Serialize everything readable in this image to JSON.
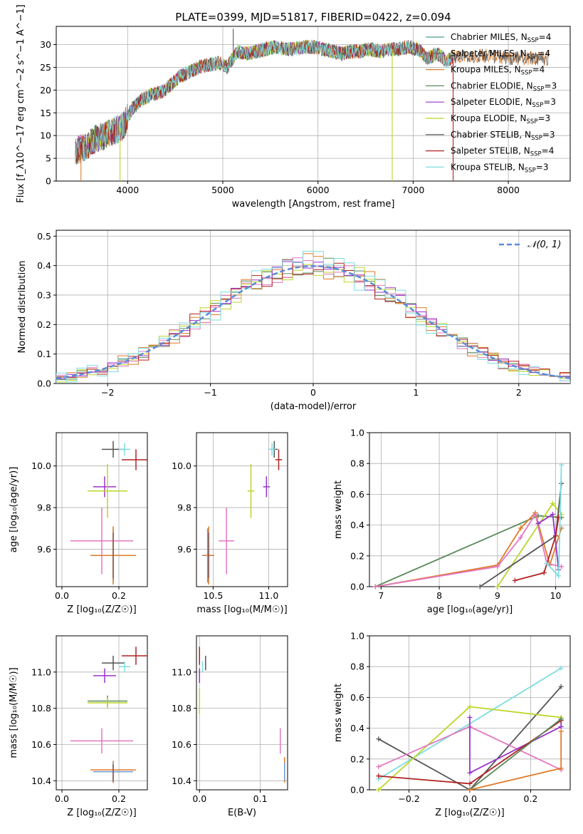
{
  "figure": {
    "title": "PLATE=0399, MJD=51817, FIBERID=0422, z=0.094"
  },
  "colors": {
    "axes": "#000000",
    "grid": "#b0b0b0",
    "chabrier_miles": "#4a9e8a",
    "salpeter_miles": "#8c564b",
    "kroupa_miles": "#e07b28",
    "chabrier_elodie": "#5a8a5a",
    "salpeter_elodie": "#9932cc",
    "kroupa_elodie": "#bcd629",
    "chabrier_stelib": "#555555",
    "salpeter_stelib": "#b22222",
    "kroupa_stelib": "#7ddde0",
    "normal_curve": "#5b8bd6",
    "extra_pink": "#e377c2",
    "extra_blue": "#6a9bd8"
  },
  "chart_data": [
    {
      "id": "spectrum",
      "type": "line",
      "xlabel": "wavelength [Angstrom, rest frame]",
      "ylabel": "Flux [f_λ10^−17 erg cm^−2 s^−1 A^−1]",
      "xlim": [
        3250,
        8650
      ],
      "ylim": [
        0,
        34
      ],
      "xticks": [
        4000,
        5000,
        6000,
        7000,
        8000
      ],
      "yticks": [
        0,
        5,
        10,
        15,
        20,
        25,
        30
      ],
      "legend_position": "top-right",
      "legend": [
        {
          "base": "Chabrier MILES, N",
          "sub": "SSP",
          "tail": "=4",
          "color_key": "chabrier_miles"
        },
        {
          "base": "Salpeter MILES, N",
          "sub": "SSP",
          "tail": "=4",
          "color_key": "salpeter_miles"
        },
        {
          "base": "Kroupa MILES, N",
          "sub": "SSP",
          "tail": "=4",
          "color_key": "kroupa_miles"
        },
        {
          "base": "Chabrier ELODIE, N",
          "sub": "SSP",
          "tail": "=3",
          "color_key": "chabrier_elodie"
        },
        {
          "base": "Salpeter ELODIE, N",
          "sub": "SSP",
          "tail": "=3",
          "color_key": "salpeter_elodie"
        },
        {
          "base": "Kroupa ELODIE, N",
          "sub": "SSP",
          "tail": "=3",
          "color_key": "kroupa_elodie"
        },
        {
          "base": "Chabrier STELIB, N",
          "sub": "SSP",
          "tail": "=3",
          "color_key": "chabrier_stelib"
        },
        {
          "base": "Salpeter STELIB, N",
          "sub": "SSP",
          "tail": "=4",
          "color_key": "salpeter_stelib"
        },
        {
          "base": "Kroupa STELIB, N",
          "sub": "SSP",
          "tail": "=3",
          "color_key": "kroupa_stelib"
        }
      ],
      "envelope": {
        "x": [
          3450,
          3550,
          3650,
          3750,
          3850,
          3950,
          4050,
          4150,
          4250,
          4350,
          4450,
          4550,
          4650,
          4750,
          4850,
          4950,
          5050,
          5150,
          5250,
          5350,
          5450,
          5550,
          5650,
          5750,
          5850,
          5950,
          6050,
          6150,
          6250,
          6350,
          6450,
          6550,
          6650,
          6750,
          6850,
          6950,
          7050,
          7150,
          7250,
          7350,
          7450,
          7600,
          7800,
          8000,
          8200,
          8400
        ],
        "y": [
          6.5,
          7.5,
          9,
          10,
          11,
          12,
          16,
          18,
          19,
          19.5,
          21,
          23,
          24,
          25,
          25.5,
          26,
          25,
          28.5,
          28,
          28.5,
          29,
          29.5,
          29,
          29,
          29.5,
          29.5,
          29,
          28.5,
          28,
          28.5,
          28.5,
          29,
          28.5,
          29,
          29,
          29.5,
          29,
          27,
          28,
          26.5,
          27.5,
          27.5,
          27.5,
          27,
          27,
          27
        ]
      },
      "spikes": [
        {
          "x": 3510,
          "y": 0,
          "color_key": "kroupa_miles"
        },
        {
          "x": 3920,
          "y": 0,
          "color_key": "kroupa_elodie"
        },
        {
          "x": 5110,
          "y": 33.5,
          "color_key": "chabrier_stelib"
        },
        {
          "x": 6780,
          "y": 0,
          "color_key": "kroupa_elodie"
        },
        {
          "x": 7420,
          "y": 0,
          "color_key": "salpeter_stelib"
        }
      ]
    },
    {
      "id": "residual_histogram",
      "type": "bar",
      "xlabel": "(data-model)/error",
      "ylabel": "Normed distribution",
      "xlim": [
        -2.5,
        2.5
      ],
      "ylim": [
        0,
        0.52
      ],
      "xticks": [
        -2,
        -1,
        0,
        1,
        2
      ],
      "yticks": [
        0.0,
        0.1,
        0.2,
        0.3,
        0.4,
        0.5
      ],
      "legend_position": "top-right",
      "legend": [
        {
          "name": "𝒩(0, 1)",
          "color_key": "normal_curve",
          "dash": true
        }
      ],
      "bin_width": 0.1,
      "bin_start": -2.5,
      "series": [
        {
          "color_key": "chabrier_elodie",
          "jitter": 0.9
        },
        {
          "color_key": "kroupa_miles",
          "jitter": 1.3
        },
        {
          "color_key": "extra_pink",
          "jitter": 1.0
        },
        {
          "color_key": "kroupa_elodie",
          "jitter": 1.1
        },
        {
          "color_key": "salpeter_elodie",
          "jitter": 0.8
        },
        {
          "color_key": "salpeter_stelib",
          "jitter": 1.2
        },
        {
          "color_key": "kroupa_stelib",
          "jitter": 1.4
        }
      ]
    },
    {
      "id": "age_vs_Z",
      "type": "scatter",
      "xlabel": "Z [log₁₀(Z/Z☉)]",
      "ylabel": "age  [log₁₀(age/yr)]",
      "xlim": [
        -0.02,
        0.3
      ],
      "ylim": [
        9.42,
        10.16
      ],
      "xticks": [
        0.0,
        0.2
      ],
      "yticks": [
        9.6,
        9.8,
        10.0
      ],
      "points": [
        {
          "x": 0.18,
          "y": 10.08,
          "xerr": 0.04,
          "yerr": 0.04,
          "color_key": "chabrier_stelib"
        },
        {
          "x": 0.22,
          "y": 10.08,
          "xerr": 0.02,
          "yerr": 0.03,
          "color_key": "kroupa_stelib"
        },
        {
          "x": 0.26,
          "y": 10.03,
          "xerr": 0.05,
          "yerr": 0.05,
          "color_key": "salpeter_stelib"
        },
        {
          "x": 0.15,
          "y": 9.9,
          "xerr": 0.04,
          "yerr": 0.05,
          "color_key": "salpeter_elodie"
        },
        {
          "x": 0.16,
          "y": 9.88,
          "xerr": 0.07,
          "yerr": 0.13,
          "color_key": "kroupa_elodie"
        },
        {
          "x": 0.14,
          "y": 9.64,
          "xerr": 0.11,
          "yerr": 0.16,
          "color_key": "extra_pink"
        },
        {
          "x": 0.18,
          "y": 9.57,
          "xerr": 0.07,
          "yerr": 0.13,
          "color_key": "extra_blue"
        },
        {
          "x": 0.18,
          "y": 9.57,
          "xerr": 0.08,
          "yerr": 0.14,
          "color_key": "kroupa_miles"
        },
        {
          "x": 0.18,
          "y": 9.57,
          "xerr": 0.0,
          "yerr": 0.11,
          "color_key": "salpeter_miles"
        }
      ]
    },
    {
      "id": "age_vs_mass",
      "type": "scatter",
      "xlabel": "mass [log₁₀(M/M☉)]",
      "ylabel": "",
      "xlim": [
        10.35,
        11.17
      ],
      "ylim": [
        9.42,
        10.16
      ],
      "xticks": [
        10.5,
        11.0
      ],
      "yticks": [
        9.6,
        9.8,
        10.0
      ],
      "points": [
        {
          "x": 11.05,
          "y": 10.08,
          "xerr": 0.03,
          "yerr": 0.04,
          "color_key": "chabrier_stelib"
        },
        {
          "x": 11.03,
          "y": 10.08,
          "xerr": 0.03,
          "yerr": 0.03,
          "color_key": "kroupa_stelib"
        },
        {
          "x": 11.09,
          "y": 10.03,
          "xerr": 0.03,
          "yerr": 0.05,
          "color_key": "salpeter_stelib"
        },
        {
          "x": 10.98,
          "y": 9.9,
          "xerr": 0.03,
          "yerr": 0.05,
          "color_key": "salpeter_elodie"
        },
        {
          "x": 10.84,
          "y": 9.88,
          "xerr": 0.03,
          "yerr": 0.13,
          "color_key": "kroupa_elodie"
        },
        {
          "x": 10.62,
          "y": 9.64,
          "xerr": 0.07,
          "yerr": 0.16,
          "color_key": "extra_pink"
        },
        {
          "x": 10.45,
          "y": 9.57,
          "xerr": 0.05,
          "yerr": 0.13,
          "color_key": "extra_blue"
        },
        {
          "x": 10.46,
          "y": 9.57,
          "xerr": 0.05,
          "yerr": 0.14,
          "color_key": "kroupa_miles"
        },
        {
          "x": 10.46,
          "y": 9.57,
          "xerr": 0.0,
          "yerr": 0.11,
          "color_key": "salpeter_miles"
        }
      ]
    },
    {
      "id": "mass_weight_vs_age",
      "type": "line",
      "xlabel": "age  [log₁₀(age/yr)]",
      "ylabel": "mass weight",
      "xlim": [
        6.8,
        10.25
      ],
      "ylim": [
        0,
        1.0
      ],
      "xticks": [
        7,
        8,
        9,
        10
      ],
      "yticks": [
        0.0,
        0.2,
        0.4,
        0.6,
        0.8,
        1.0
      ],
      "series": [
        {
          "color_key": "chabrier_elodie",
          "x": [
            6.9,
            9.7,
            10.1
          ],
          "y": [
            0.0,
            0.46,
            0.45
          ]
        },
        {
          "color_key": "kroupa_miles",
          "x": [
            6.9,
            9.0,
            9.4,
            9.65,
            9.9,
            10.1
          ],
          "y": [
            0.0,
            0.14,
            0.38,
            0.48,
            0.14,
            0.38
          ]
        },
        {
          "color_key": "extra_pink",
          "x": [
            6.9,
            9.0,
            9.4,
            9.65,
            9.85,
            10.1
          ],
          "y": [
            0.0,
            0.13,
            0.32,
            0.47,
            0.15,
            0.13
          ]
        },
        {
          "color_key": "kroupa_elodie",
          "x": [
            9.0,
            9.95,
            10.1
          ],
          "y": [
            0.0,
            0.54,
            0.47
          ]
        },
        {
          "color_key": "salpeter_elodie",
          "x": [
            9.7,
            9.95,
            10.05
          ],
          "y": [
            0.41,
            0.47,
            0.11
          ]
        },
        {
          "color_key": "chabrier_stelib",
          "x": [
            8.7,
            10.0,
            10.1
          ],
          "y": [
            0.0,
            0.33,
            0.67
          ]
        },
        {
          "color_key": "salpeter_stelib",
          "x": [
            9.3,
            9.8,
            10.0,
            10.05
          ],
          "y": [
            0.04,
            0.09,
            0.33,
            0.45
          ]
        },
        {
          "color_key": "kroupa_stelib",
          "x": [
            9.85,
            10.05,
            10.1
          ],
          "y": [
            0.15,
            0.07,
            0.79
          ]
        }
      ]
    },
    {
      "id": "mass_vs_Z",
      "type": "scatter",
      "xlabel": "Z [log₁₀(Z/Z☉)]",
      "ylabel": "mass [log₁₀(M/M☉)]",
      "xlim": [
        -0.02,
        0.3
      ],
      "ylim": [
        10.35,
        11.2
      ],
      "xticks": [
        0.0,
        0.2
      ],
      "yticks": [
        10.4,
        10.6,
        10.8,
        11.0
      ],
      "points": [
        {
          "x": 0.26,
          "y": 11.09,
          "xerr": 0.05,
          "yerr": 0.05,
          "color_key": "salpeter_stelib"
        },
        {
          "x": 0.18,
          "y": 11.05,
          "xerr": 0.04,
          "yerr": 0.04,
          "color_key": "chabrier_stelib"
        },
        {
          "x": 0.22,
          "y": 11.03,
          "xerr": 0.02,
          "yerr": 0.03,
          "color_key": "kroupa_stelib"
        },
        {
          "x": 0.15,
          "y": 10.98,
          "xerr": 0.04,
          "yerr": 0.04,
          "color_key": "salpeter_elodie"
        },
        {
          "x": 0.16,
          "y": 10.84,
          "xerr": 0.07,
          "yerr": 0.03,
          "color_key": "chabrier_elodie"
        },
        {
          "x": 0.16,
          "y": 10.83,
          "xerr": 0.07,
          "yerr": 0.03,
          "color_key": "kroupa_elodie"
        },
        {
          "x": 0.14,
          "y": 10.62,
          "xerr": 0.11,
          "yerr": 0.07,
          "color_key": "extra_pink"
        },
        {
          "x": 0.18,
          "y": 10.46,
          "xerr": 0.08,
          "yerr": 0.05,
          "color_key": "kroupa_miles"
        },
        {
          "x": 0.18,
          "y": 10.45,
          "xerr": 0.07,
          "yerr": 0.05,
          "color_key": "extra_blue"
        },
        {
          "x": 0.18,
          "y": 10.44,
          "xerr": 0.0,
          "yerr": 0.05,
          "color_key": "salpeter_miles"
        }
      ]
    },
    {
      "id": "mass_vs_ebv",
      "type": "scatter",
      "xlabel": "E(B-V)",
      "ylabel": "",
      "xlim": [
        -0.005,
        0.145
      ],
      "ylim": [
        10.35,
        11.2
      ],
      "xticks": [
        0.0,
        0.1
      ],
      "yticks": [
        10.4,
        10.6,
        10.8,
        11.0
      ],
      "points": [
        {
          "x": 0.01,
          "y": 11.05,
          "xerr": 0,
          "yerr": 0.04,
          "color_key": "chabrier_stelib"
        },
        {
          "x": 0.0,
          "y": 11.09,
          "xerr": 0,
          "yerr": 0.05,
          "color_key": "salpeter_stelib"
        },
        {
          "x": 0.005,
          "y": 11.03,
          "xerr": 0,
          "yerr": 0.03,
          "color_key": "kroupa_stelib"
        },
        {
          "x": 0.0,
          "y": 10.98,
          "xerr": 0,
          "yerr": 0.04,
          "color_key": "salpeter_elodie"
        },
        {
          "x": 0.0,
          "y": 10.84,
          "xerr": 0,
          "yerr": 0.07,
          "color_key": "kroupa_elodie"
        },
        {
          "x": 0.133,
          "y": 10.62,
          "xerr": 0,
          "yerr": 0.07,
          "color_key": "extra_pink"
        },
        {
          "x": 0.14,
          "y": 10.46,
          "xerr": 0,
          "yerr": 0.07,
          "color_key": "kroupa_miles"
        },
        {
          "x": 0.14,
          "y": 10.45,
          "xerr": 0,
          "yerr": 0.05,
          "color_key": "extra_blue"
        }
      ]
    },
    {
      "id": "mass_weight_vs_Z",
      "type": "line",
      "xlabel": "Z [log₁₀(Z/Z☉)]",
      "ylabel": "mass weight",
      "xlim": [
        -0.33,
        0.33
      ],
      "ylim": [
        0,
        1.0
      ],
      "xticks": [
        -0.2,
        0.0,
        0.2
      ],
      "yticks": [
        0.0,
        0.2,
        0.4,
        0.6,
        0.8,
        1.0
      ],
      "series": [
        {
          "color_key": "kroupa_stelib",
          "x": [
            -0.3,
            0.3
          ],
          "y": [
            0.07,
            0.79
          ]
        },
        {
          "color_key": "chabrier_stelib",
          "x": [
            -0.3,
            0.0,
            0.3
          ],
          "y": [
            0.33,
            0.0,
            0.67
          ]
        },
        {
          "color_key": "kroupa_elodie",
          "x": [
            -0.3,
            0.0,
            0.3
          ],
          "y": [
            0.0,
            0.54,
            0.47
          ]
        },
        {
          "color_key": "extra_pink",
          "x": [
            -0.3,
            0.0,
            0.3
          ],
          "y": [
            0.15,
            0.41,
            0.13
          ]
        },
        {
          "color_key": "salpeter_elodie",
          "x": [
            0.0,
            0.0,
            0.3,
            0.3
          ],
          "y": [
            0.47,
            0.11,
            0.41,
            0.46
          ]
        },
        {
          "color_key": "salpeter_stelib",
          "x": [
            -0.3,
            0.0,
            0.3
          ],
          "y": [
            0.09,
            0.04,
            0.45
          ]
        },
        {
          "color_key": "chabrier_elodie",
          "x": [
            0.0,
            0.3
          ],
          "y": [
            0.0,
            0.46
          ]
        },
        {
          "color_key": "kroupa_miles",
          "x": [
            0.0,
            0.3,
            0.3
          ],
          "y": [
            0.0,
            0.14,
            0.38
          ]
        }
      ]
    }
  ]
}
